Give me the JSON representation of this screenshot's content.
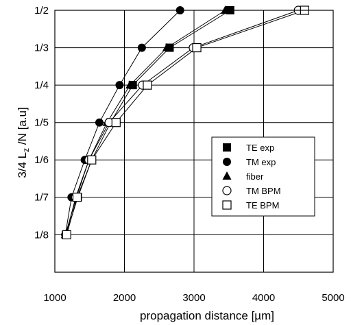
{
  "chart_data": {
    "type": "line",
    "title": "",
    "xlabel": "propagation distance [µm]",
    "ylabel": {
      "main": "3/4 L",
      "sub": "z",
      "tail": " /N  [a.u]"
    },
    "xlim": [
      1000,
      5000
    ],
    "ylim": [
      0.1111,
      0.5
    ],
    "yscale": "reciprocal",
    "grid": true,
    "legend_position": "center-right",
    "x_ticks": [
      {
        "value": 1000,
        "label": "1000"
      },
      {
        "value": 2000,
        "label": "2000"
      },
      {
        "value": 3000,
        "label": "3000"
      },
      {
        "value": 4000,
        "label": "4000"
      },
      {
        "value": 5000,
        "label": "5000"
      }
    ],
    "y_ticks": [
      {
        "value": 0.5,
        "label": "1/2"
      },
      {
        "value": 0.3333,
        "label": "1/3"
      },
      {
        "value": 0.25,
        "label": "1/4"
      },
      {
        "value": 0.2,
        "label": "1/5"
      },
      {
        "value": 0.1667,
        "label": "1/6"
      },
      {
        "value": 0.1429,
        "label": "1/7"
      },
      {
        "value": 0.125,
        "label": "1/8"
      }
    ],
    "series": [
      {
        "name": "TE exp",
        "marker": "square-filled",
        "points": [
          [
            1160,
            0.125
          ],
          [
            1330,
            0.1429
          ],
          [
            1530,
            0.1667
          ],
          [
            1800,
            0.2
          ],
          [
            2120,
            0.25
          ],
          [
            2650,
            0.3333
          ],
          [
            3520,
            0.5
          ]
        ]
      },
      {
        "name": "TM exp",
        "marker": "circle-filled",
        "points": [
          [
            1150,
            0.125
          ],
          [
            1240,
            0.1429
          ],
          [
            1430,
            0.1667
          ],
          [
            1640,
            0.2
          ],
          [
            1930,
            0.25
          ],
          [
            2250,
            0.3333
          ],
          [
            2800,
            0.5
          ]
        ]
      },
      {
        "name": "fiber",
        "marker": "triangle-filled",
        "points": [
          [
            1150,
            0.125
          ],
          [
            1310,
            0.1429
          ],
          [
            1490,
            0.1667
          ],
          [
            1750,
            0.2
          ],
          [
            2080,
            0.25
          ],
          [
            2610,
            0.3333
          ],
          [
            3450,
            0.5
          ]
        ]
      },
      {
        "name": "TM BPM",
        "marker": "circle-open",
        "points": [
          [
            1160,
            0.125
          ],
          [
            1300,
            0.1429
          ],
          [
            1490,
            0.1667
          ],
          [
            1780,
            0.2
          ],
          [
            2260,
            0.25
          ],
          [
            2990,
            0.3333
          ],
          [
            4500,
            0.5
          ]
        ]
      },
      {
        "name": "TE BPM",
        "marker": "square-open",
        "points": [
          [
            1170,
            0.125
          ],
          [
            1320,
            0.1429
          ],
          [
            1530,
            0.1667
          ],
          [
            1880,
            0.2
          ],
          [
            2330,
            0.25
          ],
          [
            3040,
            0.3333
          ],
          [
            4590,
            0.5
          ]
        ]
      }
    ]
  }
}
